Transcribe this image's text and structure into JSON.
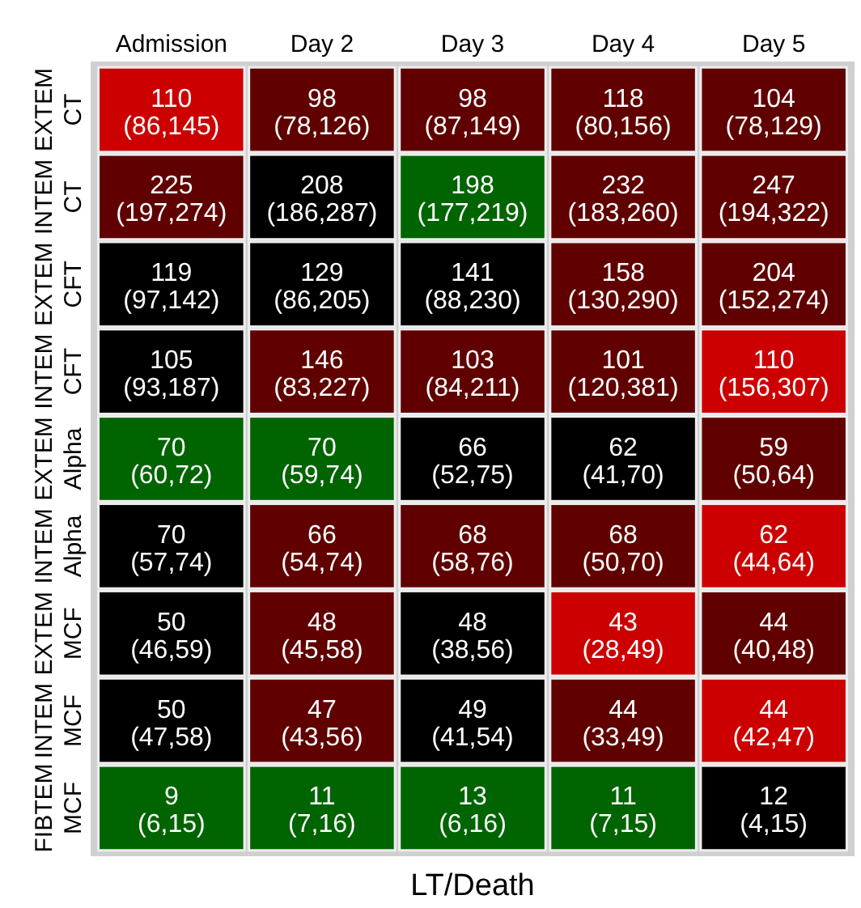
{
  "chart_data": {
    "type": "heatmap",
    "xlabel": "LT/Death",
    "data_labels": true,
    "categories": [
      "Admission",
      "Day 2",
      "Day 3",
      "Day 4",
      "Day 5"
    ],
    "y_categories": [
      "EXTEM\nCT",
      "INTEM\nCT",
      "EXTEM\nCFT",
      "INTEM\nCFT",
      "EXTEM\nAlpha",
      "INTEM\nAlpha",
      "EXTEM\nMCF",
      "INTEM\nMCF",
      "FIBTEM\nMCF"
    ],
    "cells": [
      [
        110,
        98,
        98,
        118,
        104
      ],
      [
        225,
        208,
        198,
        232,
        247
      ],
      [
        119,
        129,
        141,
        158,
        204
      ],
      [
        105,
        146,
        103,
        101,
        110
      ],
      [
        70,
        70,
        66,
        62,
        59
      ],
      [
        70,
        66,
        68,
        68,
        62
      ],
      [
        50,
        48,
        48,
        43,
        44
      ],
      [
        50,
        47,
        49,
        44,
        44
      ],
      [
        9,
        11,
        13,
        11,
        12
      ]
    ],
    "annotations": [
      "(86,145)",
      "(78,126)",
      "(87,149)",
      "(80,156)",
      "(78,129)",
      "(197,274)",
      "(186,287)",
      "(177,219)",
      "(183,260)",
      "(194,322)",
      "(97,142)",
      "(86,205)",
      "(88,230)",
      "(130,290)",
      "(152,274)",
      "(93,187)",
      "(83,227)",
      "(84,211)",
      "(120,381)",
      "(156,307)",
      "(60,72)",
      "(59,74)",
      "(52,75)",
      "(41,70)",
      "(50,64)",
      "(57,74)",
      "(54,74)",
      "(58,76)",
      "(50,70)",
      "(44,64)",
      "(46,59)",
      "(45,58)",
      "(38,56)",
      "(28,49)",
      "(40,48)",
      "(47,58)",
      "(43,56)",
      "(41,54)",
      "(33,49)",
      "(42,47)",
      "(6,15)",
      "(7,16)",
      "(6,16)",
      "(7,15)",
      "(4,15)"
    ],
    "colors": [
      [
        "#cc0000",
        "#600000",
        "#600000",
        "#600000",
        "#600000"
      ],
      [
        "#600000",
        "#000000",
        "#006400",
        "#600000",
        "#600000"
      ],
      [
        "#000000",
        "#000000",
        "#000000",
        "#600000",
        "#600000"
      ],
      [
        "#000000",
        "#600000",
        "#600000",
        "#600000",
        "#cc0000"
      ],
      [
        "#006400",
        "#006400",
        "#000000",
        "#000000",
        "#600000"
      ],
      [
        "#000000",
        "#600000",
        "#600000",
        "#600000",
        "#cc0000"
      ],
      [
        "#000000",
        "#600000",
        "#000000",
        "#cc0000",
        "#600000"
      ],
      [
        "#000000",
        "#600000",
        "#000000",
        "#600000",
        "#cc0000"
      ],
      [
        "#006400",
        "#006400",
        "#006400",
        "#006400",
        "#000000"
      ]
    ]
  }
}
